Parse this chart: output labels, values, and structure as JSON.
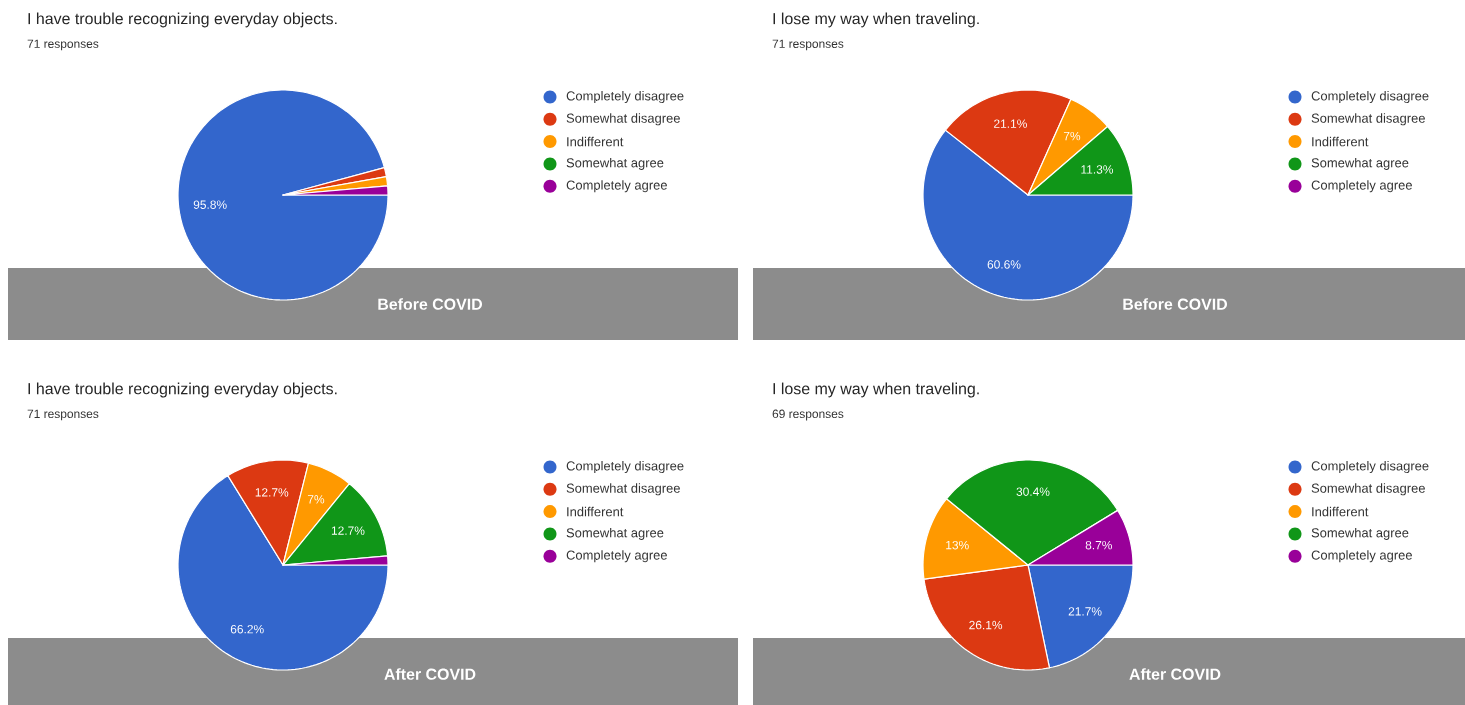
{
  "chart_data": [
    {
      "type": "pie",
      "title": "I have trouble recognizing everyday objects.",
      "subtitle": "71 responses",
      "categories": [
        "Completely disagree",
        "Somewhat disagree",
        "Indifferent",
        "Somewhat agree",
        "Completely agree"
      ],
      "values": [
        95.8,
        1.4,
        1.4,
        0,
        1.4
      ],
      "colors": [
        "#3366cc",
        "#dc3912",
        "#ff9900",
        "#109618",
        "#990099"
      ],
      "value_labels": [
        "95.8%",
        null,
        null,
        null,
        null
      ],
      "legend": "right",
      "annotations": [
        "Before COVID"
      ]
    },
    {
      "type": "pie",
      "title": "I lose my way when traveling.",
      "subtitle": "71 responses",
      "categories": [
        "Completely disagree",
        "Somewhat disagree",
        "Indifferent",
        "Somewhat agree",
        "Completely agree"
      ],
      "values": [
        60.6,
        21.1,
        7,
        11.3,
        0
      ],
      "colors": [
        "#3366cc",
        "#dc3912",
        "#ff9900",
        "#109618",
        "#990099"
      ],
      "value_labels": [
        "60.6%",
        "21.1%",
        "7%",
        "11.3%",
        null
      ],
      "legend": "right",
      "annotations": [
        "Before COVID"
      ]
    },
    {
      "type": "pie",
      "title": "I have trouble recognizing everyday objects.",
      "subtitle": "71 responses",
      "categories": [
        "Completely disagree",
        "Somewhat disagree",
        "Indifferent",
        "Somewhat agree",
        "Completely agree"
      ],
      "values": [
        66.2,
        12.7,
        7,
        12.7,
        1.4
      ],
      "colors": [
        "#3366cc",
        "#dc3912",
        "#ff9900",
        "#109618",
        "#990099"
      ],
      "value_labels": [
        "66.2%",
        "12.7%",
        "7%",
        "12.7%",
        null
      ],
      "legend": "right",
      "annotations": [
        "After COVID"
      ]
    },
    {
      "type": "pie",
      "title": "I lose my way when traveling.",
      "subtitle": "69 responses",
      "categories": [
        "Completely disagree",
        "Somewhat disagree",
        "Indifferent",
        "Somewhat agree",
        "Completely agree"
      ],
      "values": [
        21.7,
        26.1,
        13,
        30.4,
        8.7
      ],
      "colors": [
        "#3366cc",
        "#dc3912",
        "#ff9900",
        "#109618",
        "#990099"
      ],
      "value_labels": [
        "21.7%",
        "26.1%",
        "13%",
        "30.4%",
        "8.7%"
      ],
      "legend": "right",
      "annotations": [
        "After COVID"
      ]
    }
  ]
}
